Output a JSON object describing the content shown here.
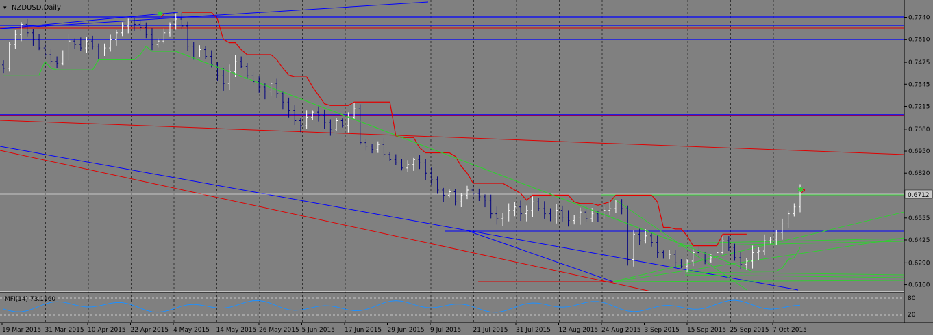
{
  "window": {
    "symbol_title": "NZDUSD,Daily"
  },
  "indicator": {
    "label": "MFI(14) 73.1160",
    "levels": [
      "80",
      "20"
    ]
  },
  "price_axis": {
    "ticks": [
      "0.7740",
      "0.7610",
      "0.7475",
      "0.7345",
      "0.7215",
      "0.7080",
      "0.6950",
      "0.6820",
      "0.6555",
      "0.6425",
      "0.6290",
      "0.6160"
    ],
    "current_price": "0.6712"
  },
  "time_axis": {
    "labels": [
      "19 Mar 2015",
      "31 Mar 2015",
      "10 Apr 2015",
      "22 Apr 2015",
      "4 May 2015",
      "14 May 2015",
      "26 May 2015",
      "5 Jun 2015",
      "17 Jun 2015",
      "29 Jun 2015",
      "9 Jul 2015",
      "21 Jul 2015",
      "31 Jul 2015",
      "12 Aug 2015",
      "24 Aug 2015",
      "3 Sep 2015",
      "15 Sep 2015",
      "25 Sep 2015",
      "7 Oct 2015"
    ]
  },
  "colors": {
    "background": "#808080",
    "bull_candle": "#ffffff",
    "bear_candle": "#000080",
    "trend_blue": "#0000ff",
    "trend_red": "#e00000",
    "trend_green": "#32cd32",
    "mfi_line": "#1e90ff",
    "grid": "#000000"
  },
  "chart_data": {
    "type": "candlestick",
    "symbol": "NZDUSD",
    "timeframe": "Daily",
    "ylim": [
      0.613,
      0.7835
    ],
    "close_series": [
      0.744,
      0.758,
      0.764,
      0.77,
      0.765,
      0.761,
      0.756,
      0.752,
      0.748,
      0.747,
      0.753,
      0.76,
      0.758,
      0.756,
      0.76,
      0.757,
      0.753,
      0.756,
      0.761,
      0.765,
      0.769,
      0.772,
      0.77,
      0.768,
      0.764,
      0.758,
      0.76,
      0.765,
      0.77,
      0.773,
      0.769,
      0.757,
      0.753,
      0.755,
      0.751,
      0.746,
      0.74,
      0.735,
      0.742,
      0.748,
      0.745,
      0.74,
      0.736,
      0.733,
      0.73,
      0.735,
      0.729,
      0.724,
      0.719,
      0.713,
      0.71,
      0.715,
      0.718,
      0.716,
      0.712,
      0.708,
      0.713,
      0.71,
      0.715,
      0.72,
      0.7,
      0.698,
      0.696,
      0.699,
      0.693,
      0.69,
      0.688,
      0.685,
      0.687,
      0.69,
      0.688,
      0.682,
      0.678,
      0.672,
      0.669,
      0.671,
      0.665,
      0.669,
      0.672,
      0.67,
      0.668,
      0.666,
      0.658,
      0.655,
      0.656,
      0.66,
      0.662,
      0.658,
      0.66,
      0.665,
      0.661,
      0.658,
      0.656,
      0.66,
      0.656,
      0.654,
      0.656,
      0.659,
      0.655,
      0.658,
      0.656,
      0.66,
      0.661,
      0.665,
      0.661,
      0.631,
      0.646,
      0.642,
      0.645,
      0.641,
      0.635,
      0.633,
      0.634,
      0.629,
      0.627,
      0.63,
      0.635,
      0.633,
      0.63,
      0.632,
      0.635,
      0.642,
      0.638,
      0.632,
      0.628,
      0.63,
      0.635,
      0.636,
      0.642,
      0.643,
      0.647,
      0.652,
      0.658,
      0.662,
      0.6712
    ],
    "current_price": 0.6712,
    "indicator": {
      "name": "MFI",
      "period": 14,
      "value": 73.116,
      "levels": [
        80,
        20
      ]
    }
  }
}
